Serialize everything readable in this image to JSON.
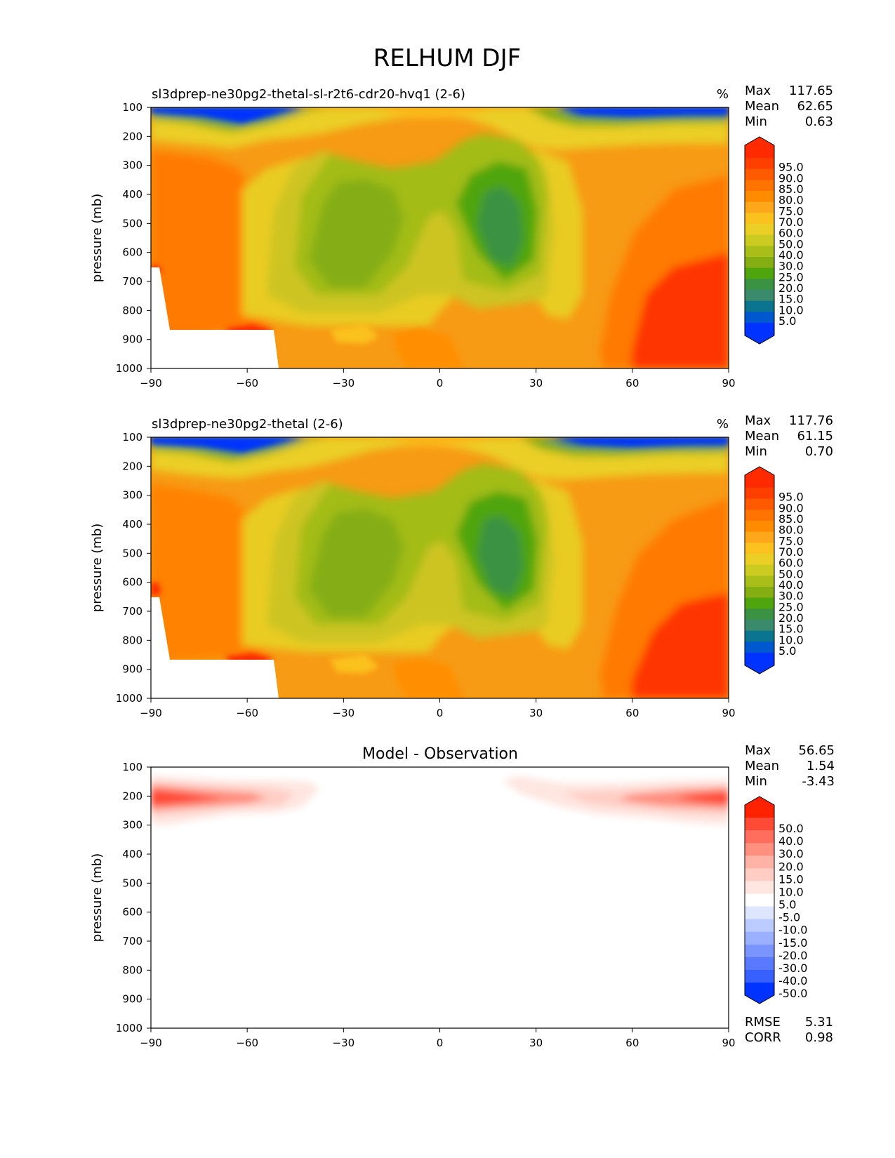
{
  "page_title": "RELHUM DJF",
  "chart_data": [
    {
      "type": "heatmap",
      "title": "sl3dprep-ne30pg2-thetal-sl-r2t6-cdr20-hvq1 (2-6)",
      "units": "%",
      "stats": {
        "max_label": "Max",
        "max": "117.65",
        "mean_label": "Mean",
        "mean": "62.65",
        "min_label": "Min",
        "min": "0.63"
      },
      "xlabel": "",
      "ylabel": "pressure (mb)",
      "xlim": [
        -90,
        90
      ],
      "ylim": [
        1000,
        100
      ],
      "xticks": [
        "−90",
        "−60",
        "−30",
        "0",
        "30",
        "60",
        "90"
      ],
      "yticks": [
        "100",
        "200",
        "300",
        "400",
        "500",
        "600",
        "700",
        "800",
        "900",
        "1000"
      ],
      "colorbar": {
        "levels": [
          "95.0",
          "90.0",
          "85.0",
          "80.0",
          "75.0",
          "70.0",
          "60.0",
          "50.0",
          "40.0",
          "30.0",
          "25.0",
          "20.0",
          "15.0",
          "10.0",
          "5.0"
        ],
        "colors": [
          "#ff2a00",
          "#ff3f00",
          "#ff5a00",
          "#ff7300",
          "#ff8c00",
          "#ffa71a",
          "#fbc11e",
          "#ebcf26",
          "#cccb21",
          "#a9be18",
          "#85ae12",
          "#4fa50e",
          "#3b9242",
          "#3a8a6e",
          "#0b7590",
          "#0058d0",
          "#0033ff"
        ]
      }
    },
    {
      "type": "heatmap",
      "title": "sl3dprep-ne30pg2-thetal (2-6)",
      "units": "%",
      "stats": {
        "max_label": "Max",
        "max": "117.76",
        "mean_label": "Mean",
        "mean": "61.15",
        "min_label": "Min",
        "min": "0.70"
      },
      "xlabel": "",
      "ylabel": "pressure (mb)",
      "xlim": [
        -90,
        90
      ],
      "ylim": [
        1000,
        100
      ],
      "xticks": [
        "−90",
        "−60",
        "−30",
        "0",
        "30",
        "60",
        "90"
      ],
      "yticks": [
        "100",
        "200",
        "300",
        "400",
        "500",
        "600",
        "700",
        "800",
        "900",
        "1000"
      ],
      "colorbar": {
        "levels": [
          "95.0",
          "90.0",
          "85.0",
          "80.0",
          "75.0",
          "70.0",
          "60.0",
          "50.0",
          "40.0",
          "30.0",
          "25.0",
          "20.0",
          "15.0",
          "10.0",
          "5.0"
        ],
        "colors": [
          "#ff2a00",
          "#ff3f00",
          "#ff5a00",
          "#ff7300",
          "#ff8c00",
          "#ffa71a",
          "#fbc11e",
          "#ebcf26",
          "#cccb21",
          "#a9be18",
          "#85ae12",
          "#4fa50e",
          "#3b9242",
          "#3a8a6e",
          "#0b7590",
          "#0058d0",
          "#0033ff"
        ]
      }
    },
    {
      "type": "heatmap",
      "title": "Model - Observation",
      "units": "",
      "stats": {
        "max_label": "Max",
        "max": "56.65",
        "mean_label": "Mean",
        "mean": "1.54",
        "min_label": "Min",
        "min": "-3.43"
      },
      "extra_stats": {
        "rmse_label": "RMSE",
        "rmse": "5.31",
        "corr_label": "CORR",
        "corr": "0.98"
      },
      "xlabel": "",
      "ylabel": "pressure (mb)",
      "xlim": [
        -90,
        90
      ],
      "ylim": [
        1000,
        100
      ],
      "xticks": [
        "−90",
        "−60",
        "−30",
        "0",
        "30",
        "60",
        "90"
      ],
      "yticks": [
        "100",
        "200",
        "300",
        "400",
        "500",
        "600",
        "700",
        "800",
        "900",
        "1000"
      ],
      "colorbar": {
        "levels": [
          "50.0",
          "40.0",
          "30.0",
          "20.0",
          "15.0",
          "10.0",
          "5.0",
          "-5.0",
          "-10.0",
          "-15.0",
          "-20.0",
          "-30.0",
          "-40.0",
          "-50.0"
        ],
        "colors": [
          "#ff2200",
          "#ff4a36",
          "#ff6d5d",
          "#ff9080",
          "#ffb3a6",
          "#ffcdc4",
          "#ffe6e1",
          "#ffffff",
          "#dde5ff",
          "#bccbff",
          "#9bb0ff",
          "#7a95ff",
          "#597aff",
          "#3860ff",
          "#0033ff"
        ]
      }
    }
  ]
}
